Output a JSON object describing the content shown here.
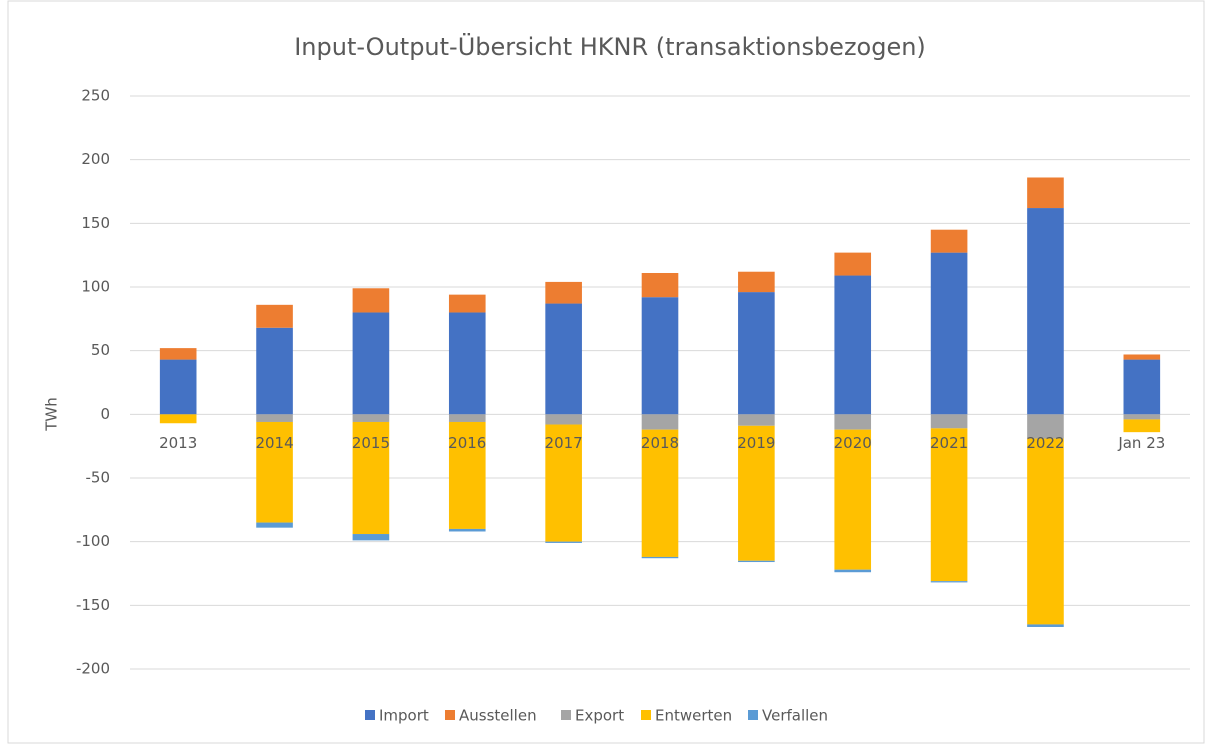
{
  "chart_data": {
    "type": "stacked_bar",
    "title": "Input-Output-Übersicht HKNR (transaktionsbezogen)",
    "y_label": "TWh",
    "categories": [
      "2013",
      "2014",
      "2015",
      "2016",
      "2017",
      "2018",
      "2019",
      "2020",
      "2021",
      "2022",
      "Jan 23"
    ],
    "series": [
      {
        "name": "Import",
        "color": "#4472c4",
        "values": [
          43,
          68,
          80,
          80,
          87,
          92,
          96,
          109,
          127,
          162,
          43
        ]
      },
      {
        "name": "Ausstellen",
        "color": "#ed7d31",
        "values": [
          9,
          18,
          19,
          14,
          17,
          19,
          16,
          18,
          18,
          24,
          4
        ]
      },
      {
        "name": "Export",
        "color": "#a5a5a5",
        "values": [
          0,
          -6,
          -6,
          -6,
          -8,
          -12,
          -9,
          -12,
          -11,
          -19,
          -4
        ]
      },
      {
        "name": "Entwerten",
        "color": "#ffc000",
        "values": [
          -7,
          -79,
          -88,
          -84,
          -92,
          -100,
          -106,
          -110,
          -120,
          -146,
          -10
        ]
      },
      {
        "name": "Verfallen",
        "color": "#5b9bd5",
        "values": [
          0,
          -4,
          -5,
          -2,
          -1,
          -1,
          -1,
          -2,
          -1,
          -2,
          0
        ]
      }
    ],
    "ylim": [
      -200,
      250
    ],
    "yticks": [
      -200,
      -150,
      -100,
      -50,
      0,
      50,
      100,
      150,
      200,
      250
    ],
    "grid": true,
    "legend": "bottom"
  }
}
